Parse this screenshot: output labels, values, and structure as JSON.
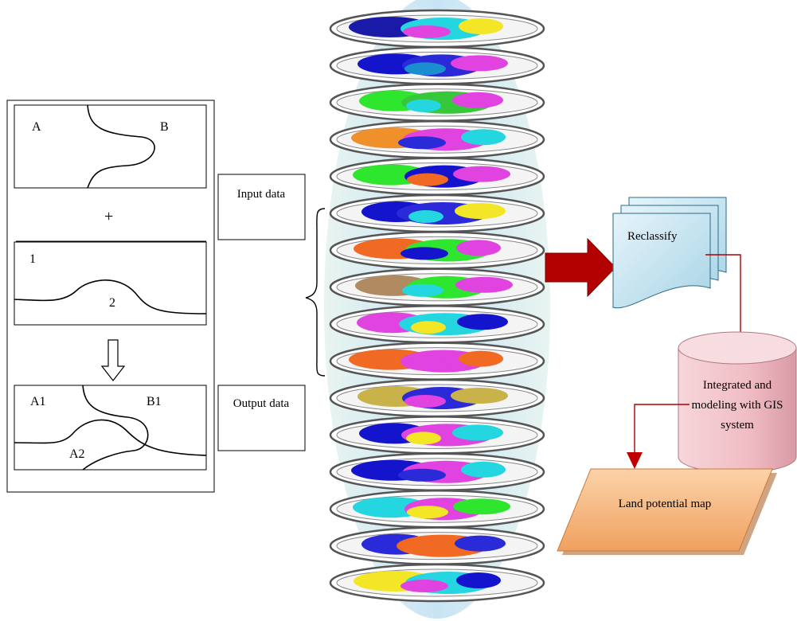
{
  "overlay_panel": {
    "box1_labels": {
      "a": "A",
      "b": "B"
    },
    "plus": "+",
    "box2_labels": {
      "one": "1",
      "two": "2"
    },
    "box3_labels": {
      "a1": "A1",
      "b1": "B1",
      "a2": "A2"
    }
  },
  "input_box": {
    "label": "Input data"
  },
  "output_box": {
    "label": "Output data"
  },
  "layer_stack": {
    "count": 16,
    "layers": [
      [
        "#1a1aa8",
        "#24d6e0",
        "#f2e626",
        "#e043e0"
      ],
      [
        "#1414cc",
        "#2a2ad8",
        "#e043e0",
        "#1a8fd0"
      ],
      [
        "#2ee62e",
        "#36c83a",
        "#e043e0",
        "#24d6e0"
      ],
      [
        "#f0902a",
        "#e043e0",
        "#24d6e0",
        "#2a2ad8"
      ],
      [
        "#2ee62e",
        "#1414cc",
        "#e043e0",
        "#f06a24"
      ],
      [
        "#1414cc",
        "#2a2ad8",
        "#f2e626",
        "#24d6e0"
      ],
      [
        "#f06a24",
        "#2ee62e",
        "#e043e0",
        "#1414cc"
      ],
      [
        "#b08a60",
        "#2ee62e",
        "#e043e0",
        "#24d6e0"
      ],
      [
        "#e043e0",
        "#24d6e0",
        "#1414cc",
        "#f2e626"
      ],
      [
        "#f06a24",
        "#e043e0",
        "#f06a24",
        "#e043e0"
      ],
      [
        "#c9b24a",
        "#2a2ad8",
        "#c9b24a",
        "#e043e0"
      ],
      [
        "#1414cc",
        "#e043e0",
        "#24d6e0",
        "#f2e626"
      ],
      [
        "#1414cc",
        "#e043e0",
        "#24d6e0",
        "#2a2ad8"
      ],
      [
        "#24d6e0",
        "#e043e0",
        "#2ee62e",
        "#f2e626"
      ],
      [
        "#2a2ad8",
        "#f06a24",
        "#2a2ad8",
        "#f06a24"
      ],
      [
        "#f2e626",
        "#24d6e0",
        "#1414cc",
        "#e043e0"
      ]
    ]
  },
  "reclassify": {
    "label": "Reclassify"
  },
  "gis_cylinder": {
    "label": "Integrated and modeling with GIS system"
  },
  "land_map": {
    "label": "Land potential map"
  },
  "colors": {
    "stack_bg": "#d8ecf4",
    "doc_fill": "#c8e4f0",
    "cylinder_fill": "#f2c6cc",
    "parallelogram_fill": "#f6b27a",
    "arrow_red": "#b00000"
  }
}
